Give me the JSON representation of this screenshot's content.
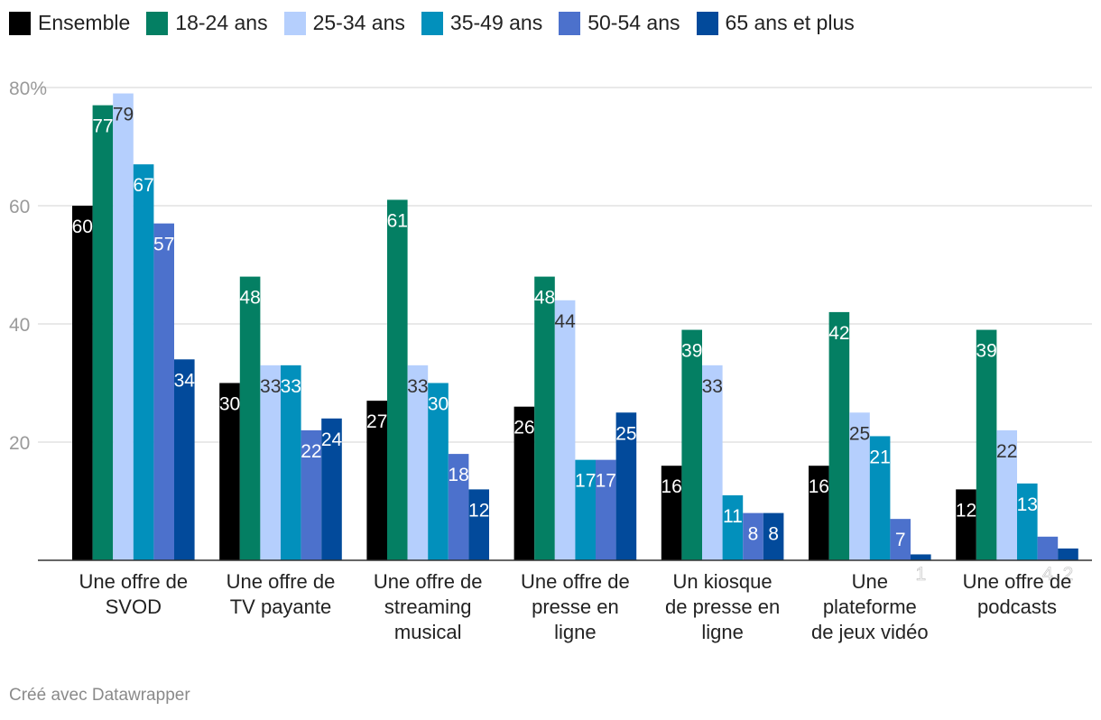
{
  "chart_data": {
    "type": "bar",
    "title": "",
    "xlabel": "",
    "ylabel": "",
    "ylim": [
      0,
      80
    ],
    "yticks": [
      20,
      40,
      60,
      80
    ],
    "ytick_labels": [
      "20",
      "40",
      "60",
      "80%"
    ],
    "categories": [
      [
        "Une offre de",
        "SVOD"
      ],
      [
        "Une offre de",
        "TV payante"
      ],
      [
        "Une offre de",
        "streaming",
        "musical"
      ],
      [
        "Une offre de",
        "presse en",
        "ligne"
      ],
      [
        "Un kiosque",
        "de presse en",
        "ligne"
      ],
      [
        "Une",
        "plateforme",
        "de jeux vidéo"
      ],
      [
        "Une offre de",
        "podcasts"
      ]
    ],
    "series": [
      {
        "name": "Ensemble",
        "color": "#000000",
        "label_color": "#ffffff",
        "values": [
          60,
          30,
          27,
          26,
          16,
          16,
          12
        ]
      },
      {
        "name": "18-24 ans",
        "color": "#047f63",
        "label_color": "#ffffff",
        "values": [
          77,
          48,
          61,
          48,
          39,
          42,
          39
        ]
      },
      {
        "name": "25-34 ans",
        "color": "#b5cffd",
        "label_color": "#333333",
        "values": [
          79,
          33,
          33,
          44,
          33,
          25,
          22
        ]
      },
      {
        "name": "35-49 ans",
        "color": "#0290bc",
        "label_color": "#ffffff",
        "values": [
          67,
          33,
          30,
          17,
          11,
          21,
          13
        ]
      },
      {
        "name": "50-54 ans",
        "color": "#4c71cc",
        "label_color": "#ffffff",
        "values": [
          57,
          22,
          18,
          17,
          8,
          7,
          4
        ]
      },
      {
        "name": "65 ans et plus",
        "color": "#024a9b",
        "label_color": "#ffffff",
        "values": [
          34,
          24,
          12,
          25,
          8,
          1,
          2
        ]
      }
    ],
    "gridlines": true,
    "legend_position": "top-left"
  },
  "footer": {
    "credit": "Créé avec Datawrapper"
  }
}
